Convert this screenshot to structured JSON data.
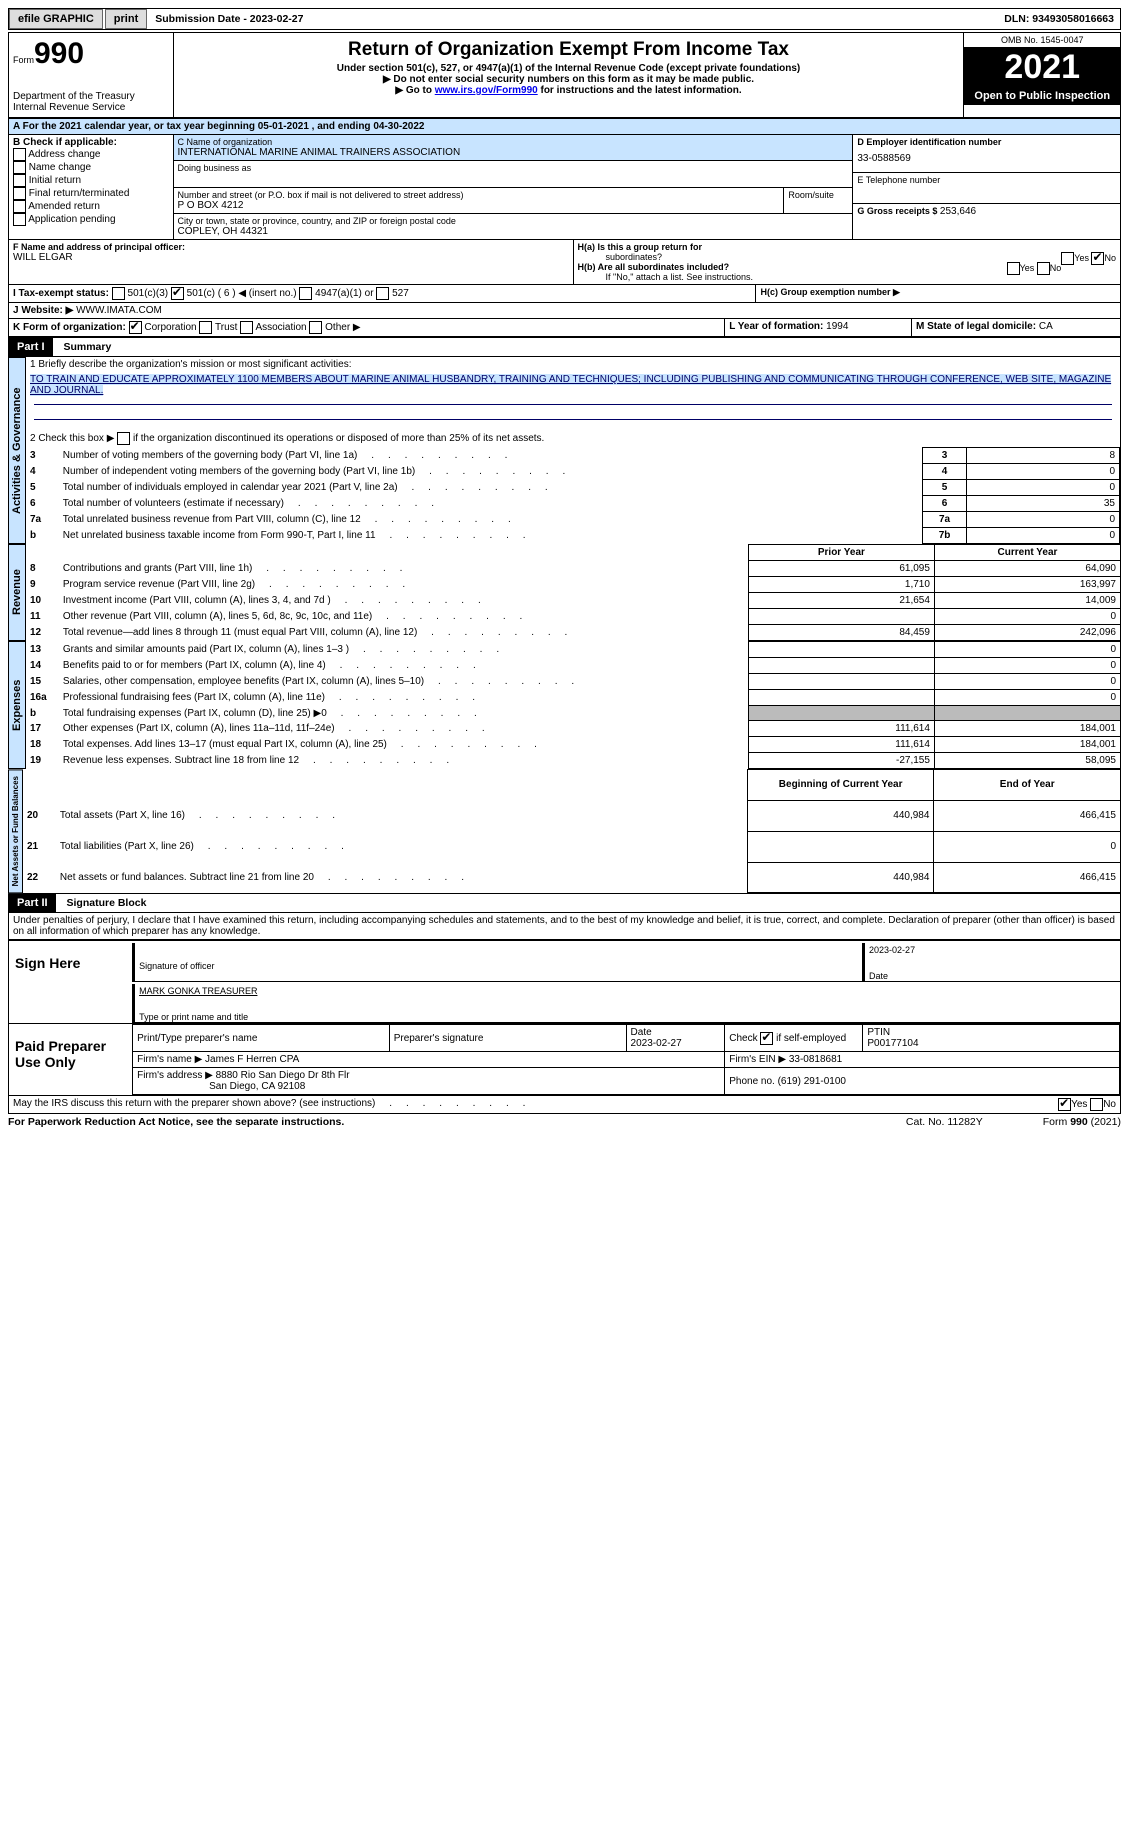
{
  "topbar": {
    "efile": "efile GRAPHIC",
    "print": "print",
    "subdate_label": "Submission Date - ",
    "subdate": "2023-02-27",
    "dln_label": "DLN: ",
    "dln": "93493058016663"
  },
  "header": {
    "form_word": "Form",
    "form_no": "990",
    "dept": "Department of the Treasury",
    "irs": "Internal Revenue Service",
    "title": "Return of Organization Exempt From Income Tax",
    "sub1": "Under section 501(c), 527, or 4947(a)(1) of the Internal Revenue Code (except private foundations)",
    "sub2": "▶ Do not enter social security numbers on this form as it may be made public.",
    "sub3": "▶ Go to www.irs.gov/Form990 for instructions and the latest information.",
    "link": "www.irs.gov/Form990",
    "omb": "OMB No. 1545-0047",
    "year": "2021",
    "oti": "Open to Public Inspection"
  },
  "calendar": "A For the 2021 calendar year, or tax year beginning 05-01-2021    , and ending 04-30-2022",
  "boxB": {
    "label": "B Check if applicable:",
    "items": [
      "Address change",
      "Name change",
      "Initial return",
      "Final return/terminated",
      "Amended return",
      "Application pending"
    ]
  },
  "boxC": {
    "label": "C Name of organization",
    "name": "INTERNATIONAL MARINE ANIMAL TRAINERS ASSOCIATION",
    "dba": "Doing business as",
    "addr_label": "Number and street (or P.O. box if mail is not delivered to street address)",
    "room": "Room/suite",
    "addr": "P O BOX 4212",
    "city_label": "City or town, state or province, country, and ZIP or foreign postal code",
    "city": "COPLEY, OH   44321"
  },
  "boxD": {
    "label": "D Employer identification number",
    "val": "33-0588569"
  },
  "boxE": {
    "label": "E Telephone number",
    "val": ""
  },
  "boxG": {
    "label": "G Gross receipts $ ",
    "val": "253,646"
  },
  "boxF": {
    "label": "F  Name and address of principal officer:",
    "val": "WILL ELGAR"
  },
  "boxH": {
    "a": "H(a)  Is this a group return for",
    "a2": "subordinates?",
    "b": "H(b)  Are all subordinates included?",
    "note": "If \"No,\" attach a list. See instructions.",
    "c": "H(c)  Group exemption number ▶",
    "yes": "Yes",
    "no": "No"
  },
  "boxI": {
    "label": "I     Tax-exempt status:",
    "c3": "501(c)(3)",
    "c": "501(c) ( 6 ) ◀ (insert no.)",
    "a1": "4947(a)(1) or",
    "s527": "527"
  },
  "boxJ": {
    "label": "J    Website: ▶  ",
    "val": "WWW.IMATA.COM"
  },
  "boxK": {
    "label": "K Form of organization:",
    "corp": "Corporation",
    "trust": "Trust",
    "assoc": "Association",
    "other": "Other ▶"
  },
  "boxL": {
    "label": "L Year of formation: ",
    "val": "1994"
  },
  "boxM": {
    "label": "M State of legal domicile: ",
    "val": "CA"
  },
  "part1": {
    "tag": "Part I",
    "title": "Summary"
  },
  "summary": {
    "l1": "1   Briefly describe the organization's mission or most significant activities:",
    "mission": "TO TRAIN AND EDUCATE APPROXIMATELY 1100 MEMBERS ABOUT MARINE ANIMAL HUSBANDRY, TRAINING AND TECHNIQUES; INCLUDING PUBLISHING AND COMMUNICATING THROUGH CONFERENCE, WEB SITE, MAGAZINE AND JOURNAL.",
    "l2": "2   Check this box ▶      if the organization discontinued its operations or disposed of more than 25% of its net assets.",
    "rows": [
      {
        "n": "3",
        "t": "Number of voting members of the governing body (Part VI, line 1a)",
        "box": "3",
        "v": "8"
      },
      {
        "n": "4",
        "t": "Number of independent voting members of the governing body (Part VI, line 1b)",
        "box": "4",
        "v": "0"
      },
      {
        "n": "5",
        "t": "Total number of individuals employed in calendar year 2021 (Part V, line 2a)",
        "box": "5",
        "v": "0"
      },
      {
        "n": "6",
        "t": "Total number of volunteers (estimate if necessary)",
        "box": "6",
        "v": "35"
      },
      {
        "n": "7a",
        "t": "Total unrelated business revenue from Part VIII, column (C), line 12",
        "box": "7a",
        "v": "0"
      },
      {
        "n": "b",
        "t": "Net unrelated business taxable income from Form 990-T, Part I, line 11",
        "box": "7b",
        "v": "0"
      }
    ],
    "py": "Prior Year",
    "cy": "Current Year",
    "rev": [
      {
        "n": "8",
        "t": "Contributions and grants (Part VIII, line 1h)",
        "p": "61,095",
        "c": "64,090"
      },
      {
        "n": "9",
        "t": "Program service revenue (Part VIII, line 2g)",
        "p": "1,710",
        "c": "163,997"
      },
      {
        "n": "10",
        "t": "Investment income (Part VIII, column (A), lines 3, 4, and 7d )",
        "p": "21,654",
        "c": "14,009"
      },
      {
        "n": "11",
        "t": "Other revenue (Part VIII, column (A), lines 5, 6d, 8c, 9c, 10c, and 11e)",
        "p": "",
        "c": "0"
      },
      {
        "n": "12",
        "t": "Total revenue—add lines 8 through 11 (must equal Part VIII, column (A), line 12)",
        "p": "84,459",
        "c": "242,096"
      }
    ],
    "exp": [
      {
        "n": "13",
        "t": "Grants and similar amounts paid (Part IX, column (A), lines 1–3 )",
        "p": "",
        "c": "0"
      },
      {
        "n": "14",
        "t": "Benefits paid to or for members (Part IX, column (A), line 4)",
        "p": "",
        "c": "0"
      },
      {
        "n": "15",
        "t": "Salaries, other compensation, employee benefits (Part IX, column (A), lines 5–10)",
        "p": "",
        "c": "0"
      },
      {
        "n": "16a",
        "t": "Professional fundraising fees (Part IX, column (A), line 11e)",
        "p": "",
        "c": "0"
      },
      {
        "n": "b",
        "t": "Total fundraising expenses (Part IX, column (D), line 25) ▶0",
        "p": "GRAY",
        "c": "GRAY"
      },
      {
        "n": "17",
        "t": "Other expenses (Part IX, column (A), lines 11a–11d, 11f–24e)",
        "p": "111,614",
        "c": "184,001"
      },
      {
        "n": "18",
        "t": "Total expenses. Add lines 13–17 (must equal Part IX, column (A), line 25)",
        "p": "111,614",
        "c": "184,001"
      },
      {
        "n": "19",
        "t": "Revenue less expenses. Subtract line 18 from line 12",
        "p": "-27,155",
        "c": "58,095"
      }
    ],
    "bcy": "Beginning of Current Year",
    "ecy": "End of Year",
    "net": [
      {
        "n": "20",
        "t": "Total assets (Part X, line 16)",
        "p": "440,984",
        "c": "466,415"
      },
      {
        "n": "21",
        "t": "Total liabilities (Part X, line 26)",
        "p": "",
        "c": "0"
      },
      {
        "n": "22",
        "t": "Net assets or fund balances. Subtract line 21 from line 20",
        "p": "440,984",
        "c": "466,415"
      }
    ],
    "vtabs": [
      "Activities & Governance",
      "Revenue",
      "Expenses",
      "Net Assets or Fund Balances"
    ]
  },
  "part2": {
    "tag": "Part II",
    "title": "Signature Block",
    "decl": "Under penalties of perjury, I declare that I have examined this return, including accompanying schedules and statements, and to the best of my knowledge and belief, it is true, correct, and complete. Declaration of preparer (other than officer) is based on all information of which preparer has any knowledge."
  },
  "sign": {
    "here": "Sign Here",
    "date": "2023-02-27",
    "sig": "Signature of officer",
    "datel": "Date",
    "name": "MARK GONKA TREASURER",
    "namel": "Type or print name and title"
  },
  "paid": {
    "label": "Paid Preparer Use Only",
    "c1": "Print/Type preparer's name",
    "c2": "Preparer's signature",
    "c3": "Date",
    "c3v": "2023-02-27",
    "c4": "Check        if self-employed",
    "c5": "PTIN",
    "c5v": "P00177104",
    "firm": "Firm's name     ▶",
    "firmv": "James F Herren CPA",
    "ein": "Firm's EIN ▶",
    "einv": "33-0818681",
    "addr": "Firm's address ▶",
    "addrv": "8880 Rio San Diego Dr 8th Flr",
    "addrv2": "San Diego, CA  92108",
    "phone": "Phone no. ",
    "phonev": "(619) 291-0100"
  },
  "footer": {
    "q": "May the IRS discuss this return with the preparer shown above? (see instructions)",
    "yes": "Yes",
    "no": "No",
    "pra": "For Paperwork Reduction Act Notice, see the separate instructions.",
    "cat": "Cat. No. 11282Y",
    "form": "Form 990 (2021)"
  }
}
